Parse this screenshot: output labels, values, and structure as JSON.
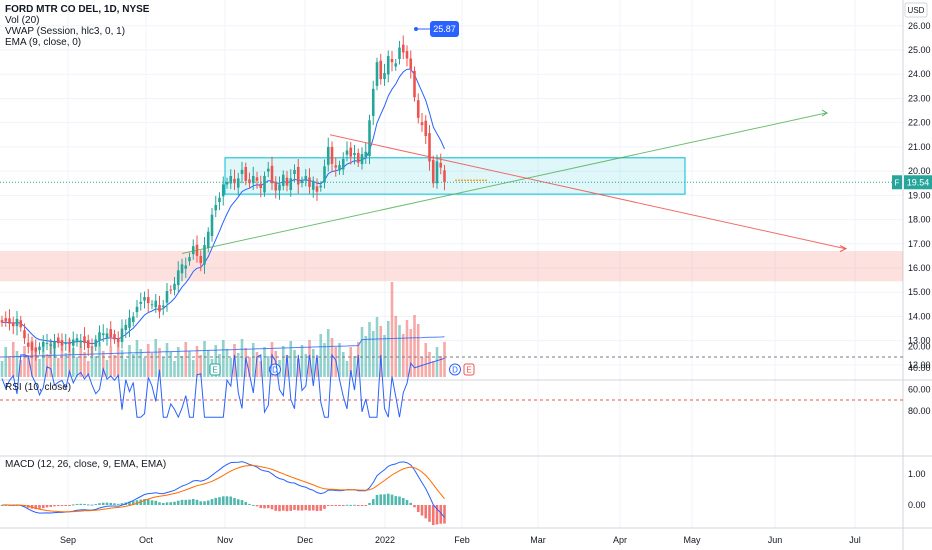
{
  "header": {
    "title": "FORD MTR CO DEL, 1D, NYSE",
    "indicators": [
      "Vol (20)",
      "VWAP (Session, hlc3, 0, 1)",
      "EMA (9, close, 0)"
    ],
    "currency": "USD"
  },
  "price_pane": {
    "yticks": [
      "26.00",
      "25.00",
      "24.00",
      "23.00",
      "22.00",
      "21.00",
      "20.00",
      "19.00",
      "18.00",
      "17.00",
      "16.00",
      "15.00",
      "14.00",
      "13.00",
      "12.00"
    ],
    "last_price_label": "19.54",
    "last_price_symbol": "F",
    "high_label": "25.87",
    "event_markers": [
      {
        "date": "Oct 26",
        "letter": "E"
      },
      {
        "date": "Nov 26",
        "letter": "D"
      },
      {
        "date": "Jan 28",
        "letter": "D"
      },
      {
        "date": "Feb 2",
        "letter": "E"
      }
    ]
  },
  "rsi_pane": {
    "label": "RSI (10, close)",
    "yticks": [
      "80.00",
      "60.00",
      "40.00",
      "20.00"
    ]
  },
  "macd_pane": {
    "label": "MACD (12, 26, close, 9, EMA, EMA)",
    "yticks": [
      "1.00",
      "0.00"
    ]
  },
  "x_axis": {
    "labels": [
      "Sep",
      "Oct",
      "Nov",
      "Dec",
      "2022",
      "Feb",
      "Mar",
      "Apr",
      "May",
      "Jun",
      "Jul"
    ]
  },
  "colors": {
    "up": "#26a69a",
    "down": "#ef5350",
    "accent": "#2962ff",
    "ema": "#2962ff",
    "grid": "#f0f3fa",
    "zone_cyan": "#00bcd4",
    "zone_red": "#f44336"
  },
  "chart_data": {
    "type": "candlestick",
    "title": "FORD MTR CO DEL, 1D, NYSE",
    "unit": "USD",
    "ylim": [
      11.5,
      26.9
    ],
    "series": [
      {
        "name": "Price (close)",
        "x_start": "2021-08-12",
        "values": [
          13.75,
          13.8,
          13.7,
          13.6,
          13.9,
          13.55,
          13.1,
          12.75,
          12.6,
          12.55,
          12.75,
          12.95,
          12.9,
          12.85,
          12.95,
          12.9,
          12.8,
          12.9,
          12.85,
          13.05,
          13.1,
          13.0,
          12.9,
          12.7,
          12.75,
          13.05,
          13.35,
          13.3,
          13.3,
          13.15,
          13.05,
          12.95,
          13.5,
          13.65,
          13.95,
          14.0,
          14.4,
          14.6,
          14.8,
          14.55,
          14.5,
          14.65,
          14.2,
          14.45,
          15.05,
          15.1,
          15.35,
          15.9,
          16.15,
          16.1,
          16.45,
          16.9,
          16.5,
          16.2,
          16.95,
          17.5,
          18.2,
          18.6,
          18.9,
          19.45,
          19.55,
          19.8,
          19.5,
          19.7,
          20.05,
          19.6,
          19.5,
          19.8,
          19.6,
          19.3,
          19.8,
          20.1,
          19.5,
          19.2,
          19.45,
          19.85,
          19.4,
          19.7,
          20.05,
          19.45,
          19.6,
          19.8,
          19.35,
          19.55,
          19.15,
          19.4,
          20.2,
          21.0,
          20.3,
          20.15,
          20.25,
          20.5,
          20.85,
          20.6,
          20.75,
          20.35,
          20.7,
          20.8,
          22.1,
          23.4,
          24.5,
          23.8,
          24.05,
          24.75,
          24.5,
          24.45,
          25.1,
          24.9,
          24.65,
          24.2,
          23.05,
          22.2,
          21.9,
          21.45,
          20.4,
          19.5,
          20.4,
          20.15,
          19.54
        ]
      }
    ],
    "events": [
      "E",
      "D",
      "D",
      "E"
    ]
  }
}
